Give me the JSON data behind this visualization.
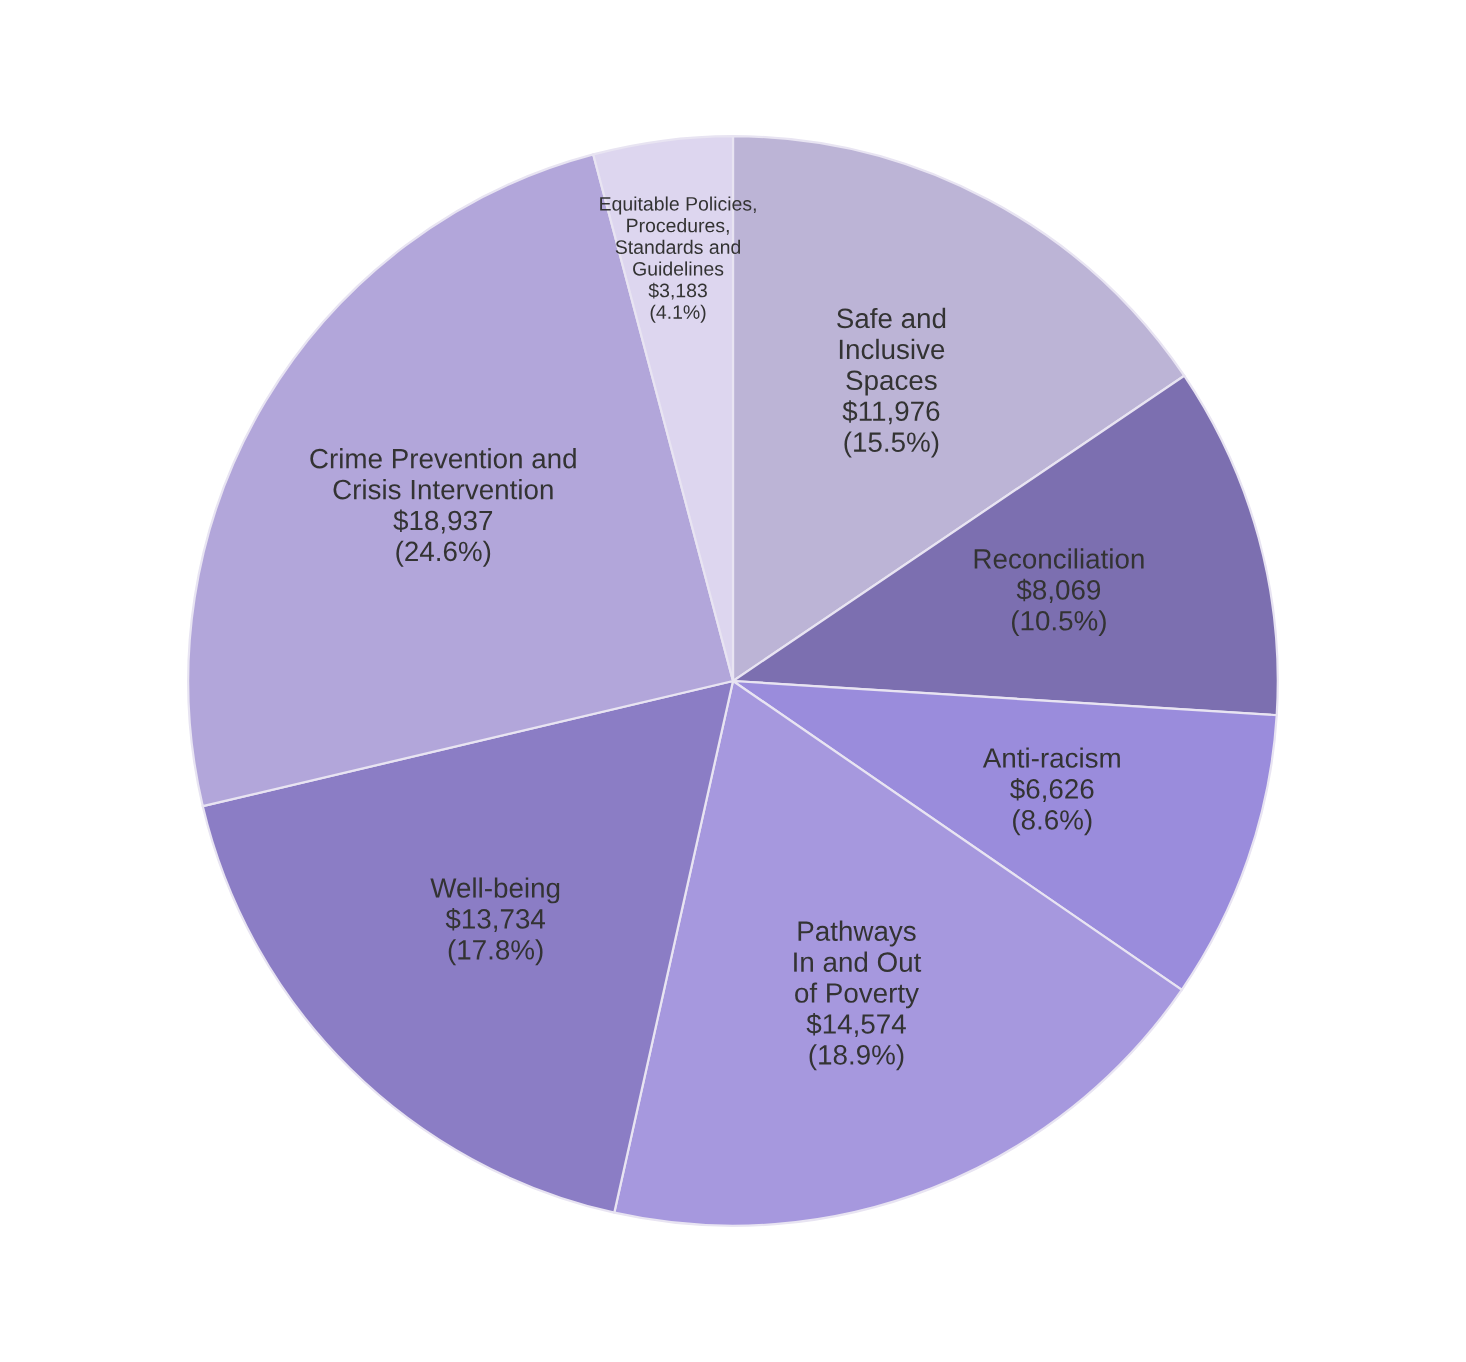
{
  "chart_data": {
    "type": "pie",
    "categories": [
      "Safe and\nInclusive\nSpaces",
      "Reconciliation",
      "Anti-racism",
      "Pathways\nIn and Out\nof Poverty",
      "Well-being",
      "Crime Prevention and\nCrisis Intervention",
      "Equitable Policies,\nProcedures,\nStandards and\nGuidelines"
    ],
    "values": [
      11976,
      8069,
      6626,
      14574,
      13734,
      18937,
      3183
    ],
    "value_labels": [
      "$11,976\n(15.5%)",
      "$8,069\n(10.5%)",
      "$6,626\n(8.6%)",
      "$14,574\n(18.9%)",
      "$13,734\n(17.8%)",
      "$18,937\n(24.6%)",
      "$3,183\n(4.1%)"
    ],
    "colors": [
      "#bcb4d6",
      "#7c6fb0",
      "#9a8cdc",
      "#a698de",
      "#8b7dc5",
      "#b2a6da",
      "#ddd6ef"
    ]
  }
}
